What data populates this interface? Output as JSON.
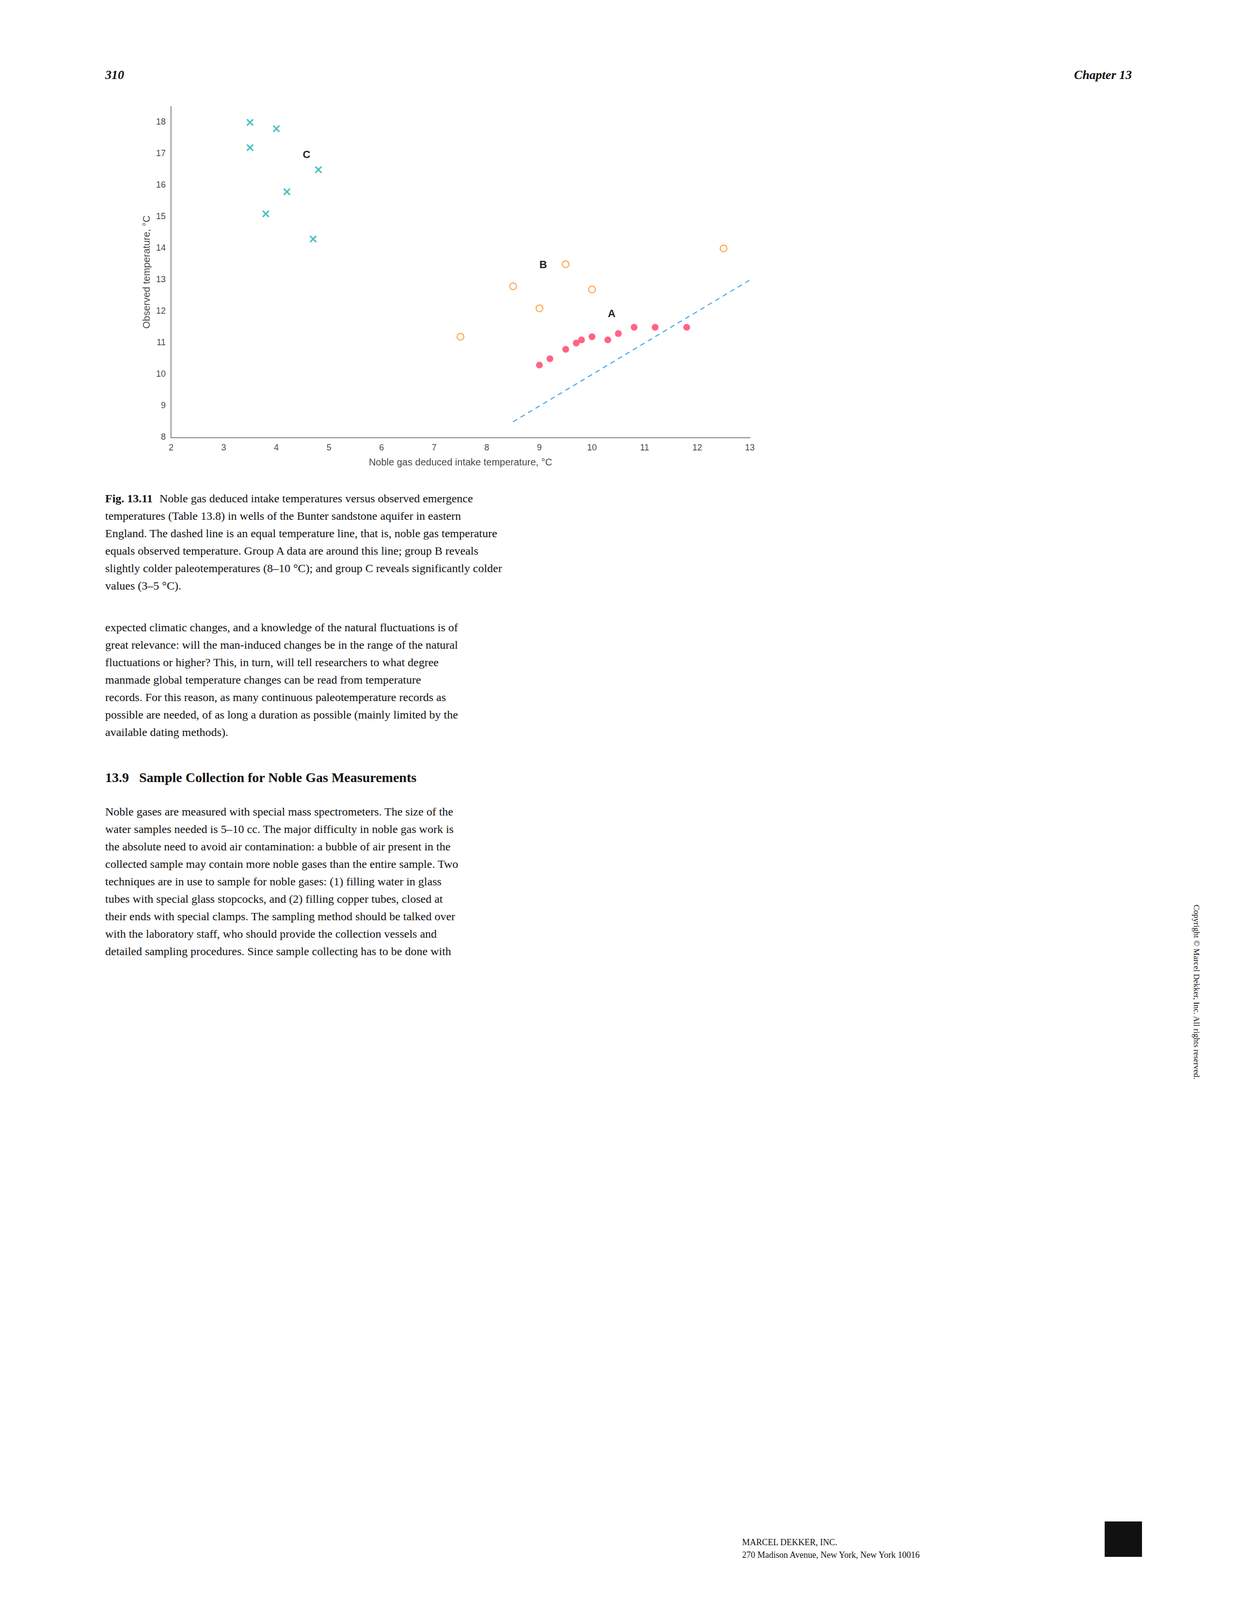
{
  "chart_data": {
    "type": "scatter",
    "xlabel": "Noble gas deduced intake temperature, °C",
    "ylabel": "Observed temperature, °C",
    "xlim": [
      2,
      13
    ],
    "ylim": [
      8,
      18.5
    ],
    "xticks": [
      2,
      3,
      4,
      5,
      6,
      7,
      8,
      9,
      10,
      11,
      12,
      13
    ],
    "yticks": [
      8,
      9,
      10,
      11,
      12,
      13,
      14,
      15,
      16,
      17,
      18
    ],
    "grid": false,
    "series": [
      {
        "type": "line",
        "line_style": "dashed",
        "x": [
          8.5,
          13
        ],
        "values": [
          8.5,
          13
        ]
      },
      {
        "type": "scatter",
        "marker": "circle",
        "x": [
          9.0,
          9.2,
          9.5,
          9.7,
          9.8,
          10.0,
          10.3,
          10.5,
          10.8,
          11.2,
          11.8
        ],
        "values": [
          10.3,
          10.5,
          10.8,
          11.0,
          11.1,
          11.2,
          11.1,
          11.3,
          11.5,
          11.5,
          11.5
        ]
      },
      {
        "type": "scatter",
        "marker": "open_circle",
        "x": [
          7.5,
          8.5,
          9.0,
          9.5,
          10.0,
          12.5
        ],
        "values": [
          11.2,
          12.8,
          12.1,
          13.5,
          12.7,
          14.0
        ]
      },
      {
        "type": "scatter",
        "marker": "cross",
        "x": [
          3.5,
          4.0,
          3.5,
          4.8,
          4.2,
          3.8,
          4.7
        ],
        "values": [
          18.0,
          17.8,
          17.2,
          16.5,
          15.8,
          15.1,
          14.3
        ]
      }
    ],
    "annotations": [
      {
        "text": "A",
        "x": 10.3,
        "y": 11.75
      },
      {
        "text": "B",
        "x": 9.0,
        "y": 13.3
      },
      {
        "text": "C",
        "x": 4.5,
        "y": 16.8
      }
    ]
  },
  "page_left": "310",
  "page_right": "Chapter 13",
  "caption_label": "Fig. 13.11",
  "caption_lines": [
    "Noble gas deduced intake temperatures versus observed emergence",
    "temperatures (Table 13.8) in wells of the Bunter sandstone aquifer in eastern",
    "England. The dashed line is an equal temperature line, that is, noble gas temperature",
    "equals observed temperature. Group A data are around this line; group B reveals",
    "slightly colder paleotemperatures (8–10 °C); and group C reveals significantly colder",
    "values (3–5 °C)."
  ],
  "body_text_1_lines": [
    "expected climatic changes, and a knowledge of the natural fluctuations is of",
    "great relevance: will the man-induced changes be in the range of the natural",
    "fluctuations or higher? This, in turn, will tell researchers to what degree",
    "manmade global temperature changes can be read from temperature",
    "records. For this reason, as many continuous paleotemperature records as",
    "possible are needed, of as long a duration as possible (mainly limited by the",
    "available dating methods)."
  ],
  "section_header": "13.9   Sample Collection for Noble Gas Measurements",
  "body_text_2_lines": [
    "Noble gases are measured with special mass spectrometers. The size of the",
    "water samples needed is 5–10 cc. The major difficulty in noble gas work is",
    "the absolute need to avoid air contamination: a bubble of air present in the",
    "collected sample may contain more noble gases than the entire sample. Two",
    "techniques are in use to sample for noble gases: (1) filling water in glass",
    "tubes with special glass stopcocks, and (2) filling copper tubes, closed at",
    "their ends with special clamps. The sampling method should be talked over",
    "with the laboratory staff, who should provide the collection vessels and",
    "detailed sampling procedures. Since sample collecting has to be done with"
  ],
  "footer_line1": "MARCEL DEKKER, INC.",
  "footer_line2": "270 Madison Avenue, New York, New York 10016",
  "copyright_text": "Copyright © Marcel Dekker, Inc. All rights reserved."
}
